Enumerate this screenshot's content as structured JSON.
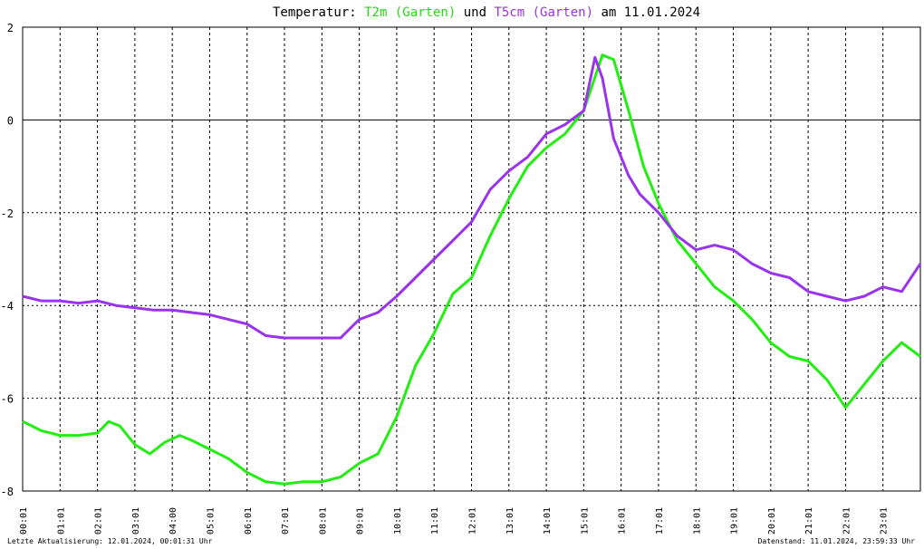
{
  "title": {
    "prefix": "Temperatur: ",
    "series1": "T2m (Garten)",
    "mid": " und ",
    "series2": "T5cm (Garten)",
    "suffix": " am 11.01.2024"
  },
  "footer": {
    "left": "Letzte Aktualisierung: 12.01.2024, 00:01:31 Uhr",
    "right": "Datenstand: 11.01.2024, 23:59:33 Uhr"
  },
  "colors": {
    "T2m": "#22ee11",
    "T5cm": "#9933ee",
    "title_t2m": "#22dd11",
    "title_t5cm": "#9933dd",
    "grid": "#000000"
  },
  "chart_data": {
    "type": "line",
    "x_unit": "hours",
    "xlim": [
      0,
      24
    ],
    "ylim": [
      -8,
      2
    ],
    "y_ticks": [
      2,
      0,
      -2,
      -4,
      -6,
      -8
    ],
    "x_ticks": [
      "00:01",
      "01:01",
      "02:01",
      "03:01",
      "04:00",
      "05:01",
      "06:01",
      "07:01",
      "08:01",
      "09:01",
      "10:01",
      "11:01",
      "12:01",
      "13:01",
      "14:01",
      "15:01",
      "16:01",
      "17:01",
      "18:01",
      "19:01",
      "20:01",
      "21:01",
      "22:01",
      "23:01"
    ],
    "grid": true,
    "series": [
      {
        "name": "T2m (Garten)",
        "points": [
          [
            0,
            -6.5
          ],
          [
            0.5,
            -6.7
          ],
          [
            1.0,
            -6.8
          ],
          [
            1.5,
            -6.8
          ],
          [
            2.0,
            -6.75
          ],
          [
            2.3,
            -6.5
          ],
          [
            2.6,
            -6.6
          ],
          [
            3.0,
            -7.0
          ],
          [
            3.4,
            -7.2
          ],
          [
            3.8,
            -6.95
          ],
          [
            4.2,
            -6.8
          ],
          [
            4.5,
            -6.9
          ],
          [
            5.0,
            -7.1
          ],
          [
            5.5,
            -7.3
          ],
          [
            6.0,
            -7.6
          ],
          [
            6.5,
            -7.8
          ],
          [
            7.0,
            -7.85
          ],
          [
            7.5,
            -7.8
          ],
          [
            8.0,
            -7.8
          ],
          [
            8.5,
            -7.7
          ],
          [
            9.0,
            -7.4
          ],
          [
            9.5,
            -7.2
          ],
          [
            10.0,
            -6.4
          ],
          [
            10.5,
            -5.3
          ],
          [
            11.0,
            -4.6
          ],
          [
            11.5,
            -3.75
          ],
          [
            12.0,
            -3.4
          ],
          [
            12.5,
            -2.5
          ],
          [
            13.0,
            -1.7
          ],
          [
            13.5,
            -1.0
          ],
          [
            14.0,
            -0.6
          ],
          [
            14.5,
            -0.3
          ],
          [
            15.0,
            0.2
          ],
          [
            15.5,
            1.4
          ],
          [
            15.8,
            1.3
          ],
          [
            16.2,
            0.2
          ],
          [
            16.6,
            -1.0
          ],
          [
            17.0,
            -1.8
          ],
          [
            17.5,
            -2.6
          ],
          [
            18.0,
            -3.1
          ],
          [
            18.5,
            -3.6
          ],
          [
            19.0,
            -3.9
          ],
          [
            19.5,
            -4.3
          ],
          [
            20.0,
            -4.8
          ],
          [
            20.5,
            -5.1
          ],
          [
            21.0,
            -5.2
          ],
          [
            21.5,
            -5.6
          ],
          [
            22.0,
            -6.2
          ],
          [
            22.5,
            -5.7
          ],
          [
            23.0,
            -5.2
          ],
          [
            23.5,
            -4.8
          ],
          [
            24.0,
            -5.1
          ]
        ]
      },
      {
        "name": "T5cm (Garten)",
        "points": [
          [
            0,
            -3.8
          ],
          [
            0.5,
            -3.9
          ],
          [
            1.0,
            -3.9
          ],
          [
            1.5,
            -3.95
          ],
          [
            2.0,
            -3.9
          ],
          [
            2.5,
            -4.0
          ],
          [
            3.0,
            -4.05
          ],
          [
            3.5,
            -4.1
          ],
          [
            4.0,
            -4.1
          ],
          [
            4.5,
            -4.15
          ],
          [
            5.0,
            -4.2
          ],
          [
            5.5,
            -4.3
          ],
          [
            6.0,
            -4.4
          ],
          [
            6.5,
            -4.65
          ],
          [
            7.0,
            -4.7
          ],
          [
            7.5,
            -4.7
          ],
          [
            8.0,
            -4.7
          ],
          [
            8.5,
            -4.7
          ],
          [
            9.0,
            -4.3
          ],
          [
            9.5,
            -4.15
          ],
          [
            10.0,
            -3.8
          ],
          [
            10.5,
            -3.4
          ],
          [
            11.0,
            -3.0
          ],
          [
            11.5,
            -2.6
          ],
          [
            12.0,
            -2.2
          ],
          [
            12.5,
            -1.5
          ],
          [
            13.0,
            -1.1
          ],
          [
            13.5,
            -0.8
          ],
          [
            14.0,
            -0.3
          ],
          [
            14.5,
            -0.1
          ],
          [
            15.0,
            0.2
          ],
          [
            15.3,
            1.35
          ],
          [
            15.5,
            0.9
          ],
          [
            15.8,
            -0.4
          ],
          [
            16.2,
            -1.2
          ],
          [
            16.5,
            -1.6
          ],
          [
            17.0,
            -2.0
          ],
          [
            17.5,
            -2.5
          ],
          [
            18.0,
            -2.8
          ],
          [
            18.5,
            -2.7
          ],
          [
            19.0,
            -2.8
          ],
          [
            19.5,
            -3.1
          ],
          [
            20.0,
            -3.3
          ],
          [
            20.5,
            -3.4
          ],
          [
            21.0,
            -3.7
          ],
          [
            21.5,
            -3.8
          ],
          [
            22.0,
            -3.9
          ],
          [
            22.5,
            -3.8
          ],
          [
            23.0,
            -3.6
          ],
          [
            23.5,
            -3.7
          ],
          [
            24.0,
            -3.1
          ]
        ]
      }
    ]
  }
}
